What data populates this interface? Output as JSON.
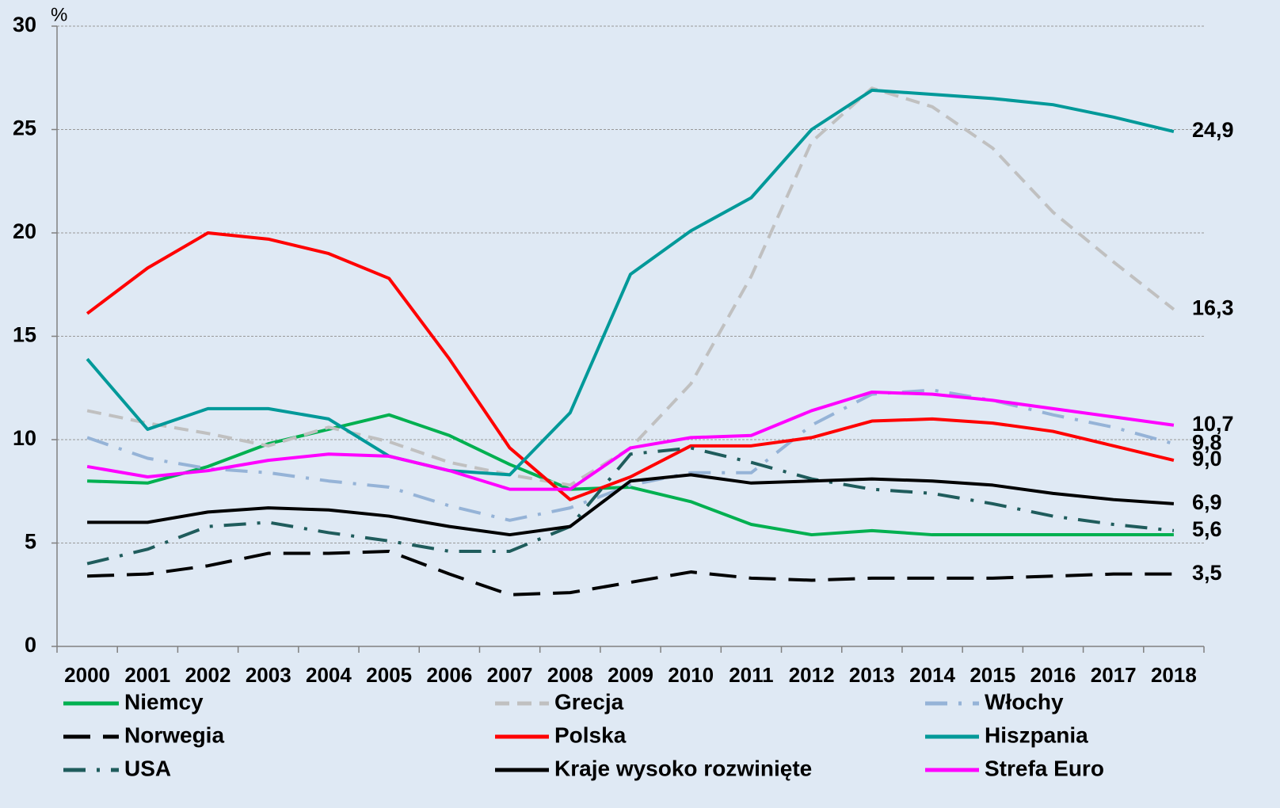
{
  "chart_data": {
    "type": "line",
    "y_unit": "%",
    "categories": [
      "2000",
      "2001",
      "2002",
      "2003",
      "2004",
      "2005",
      "2006",
      "2007",
      "2008",
      "2009",
      "2010",
      "2011",
      "2012",
      "2013",
      "2014",
      "2015",
      "2016",
      "2017",
      "2018"
    ],
    "ylim": [
      0,
      30
    ],
    "yticks": [
      0,
      5,
      10,
      15,
      20,
      25,
      30
    ],
    "grid": true,
    "series": [
      {
        "name": "Niemcy",
        "color": "#00b050",
        "dash": "solid",
        "values": [
          8.0,
          7.9,
          8.7,
          9.8,
          10.5,
          11.2,
          10.2,
          8.8,
          7.6,
          7.7,
          7.0,
          5.9,
          5.4,
          5.6,
          5.4,
          5.4,
          5.4,
          5.4,
          5.4
        ]
      },
      {
        "name": "Grecja",
        "color": "#c0c0c0",
        "dash": "dashed",
        "values": [
          11.4,
          10.8,
          10.3,
          9.7,
          10.6,
          9.9,
          8.9,
          8.3,
          7.8,
          9.6,
          12.7,
          17.9,
          24.4,
          27.0,
          26.1,
          24.1,
          21.0,
          18.6,
          16.3
        ],
        "value_labels": [
          null,
          null,
          null,
          null,
          null,
          null,
          null,
          null,
          null,
          null,
          null,
          null,
          null,
          null,
          null,
          null,
          null,
          null,
          "16,3"
        ]
      },
      {
        "name": "Włochy",
        "color": "#95b3d7",
        "dash": "dashdot",
        "values": [
          10.1,
          9.1,
          8.6,
          8.4,
          8.0,
          7.7,
          6.8,
          6.1,
          6.7,
          7.8,
          8.4,
          8.4,
          10.7,
          12.2,
          12.4,
          11.9,
          11.2,
          10.6,
          9.8
        ],
        "value_labels": [
          null,
          null,
          null,
          null,
          null,
          null,
          null,
          null,
          null,
          null,
          null,
          null,
          null,
          null,
          null,
          null,
          null,
          null,
          "9,8"
        ]
      },
      {
        "name": "Norwegia",
        "color": "#000000",
        "dash": "longdash",
        "values": [
          3.4,
          3.5,
          3.9,
          4.5,
          4.5,
          4.6,
          3.5,
          2.5,
          2.6,
          3.1,
          3.6,
          3.3,
          3.2,
          3.3,
          3.3,
          3.3,
          3.4,
          3.5,
          3.5
        ],
        "value_labels": [
          null,
          null,
          null,
          null,
          null,
          null,
          null,
          null,
          null,
          null,
          null,
          null,
          null,
          null,
          null,
          null,
          null,
          null,
          "3,5"
        ]
      },
      {
        "name": "Polska",
        "color": "#ff0000",
        "dash": "solid",
        "values": [
          16.1,
          18.3,
          20.0,
          19.7,
          19.0,
          17.8,
          13.9,
          9.6,
          7.1,
          8.2,
          9.7,
          9.7,
          10.1,
          10.9,
          11.0,
          10.8,
          10.4,
          9.7,
          9.0
        ],
        "value_labels": [
          null,
          null,
          null,
          null,
          null,
          null,
          null,
          null,
          null,
          null,
          null,
          null,
          null,
          null,
          null,
          null,
          null,
          null,
          "9,0"
        ]
      },
      {
        "name": "Hiszpania",
        "color": "#009999",
        "dash": "solid",
        "values": [
          13.9,
          10.5,
          11.5,
          11.5,
          11.0,
          9.2,
          8.5,
          8.3,
          11.3,
          18.0,
          20.1,
          21.7,
          25.0,
          26.9,
          26.7,
          26.5,
          26.2,
          25.6,
          24.9
        ],
        "value_labels": [
          null,
          null,
          null,
          null,
          null,
          null,
          null,
          null,
          null,
          null,
          null,
          null,
          null,
          null,
          null,
          null,
          null,
          null,
          "24,9"
        ]
      },
      {
        "name": "USA",
        "color": "#1f5c5c",
        "dash": "dashdot",
        "values": [
          4.0,
          4.7,
          5.8,
          6.0,
          5.5,
          5.1,
          4.6,
          4.6,
          5.8,
          9.3,
          9.6,
          8.9,
          8.1,
          7.6,
          7.4,
          6.9,
          6.3,
          5.9,
          5.6
        ],
        "value_labels": [
          null,
          null,
          null,
          null,
          null,
          null,
          null,
          null,
          null,
          null,
          null,
          null,
          null,
          null,
          null,
          null,
          null,
          null,
          "5,6"
        ]
      },
      {
        "name": "Kraje wysoko rozwinięte",
        "color": "#000000",
        "dash": "solid",
        "values": [
          6.0,
          6.0,
          6.5,
          6.7,
          6.6,
          6.3,
          5.8,
          5.4,
          5.8,
          8.0,
          8.3,
          7.9,
          8.0,
          8.1,
          8.0,
          7.8,
          7.4,
          7.1,
          6.9
        ],
        "value_labels": [
          null,
          null,
          null,
          null,
          null,
          null,
          null,
          null,
          null,
          null,
          null,
          null,
          null,
          null,
          null,
          null,
          null,
          null,
          "6,9"
        ]
      },
      {
        "name": "Strefa Euro",
        "color": "#ff00ff",
        "dash": "solid",
        "values": [
          8.7,
          8.2,
          8.5,
          9.0,
          9.3,
          9.2,
          8.5,
          7.6,
          7.6,
          9.6,
          10.1,
          10.2,
          11.4,
          12.3,
          12.2,
          11.9,
          11.5,
          11.1,
          10.7
        ],
        "value_labels": [
          null,
          null,
          null,
          null,
          null,
          null,
          null,
          null,
          null,
          null,
          null,
          null,
          null,
          null,
          null,
          null,
          null,
          null,
          "10,7"
        ]
      }
    ]
  }
}
